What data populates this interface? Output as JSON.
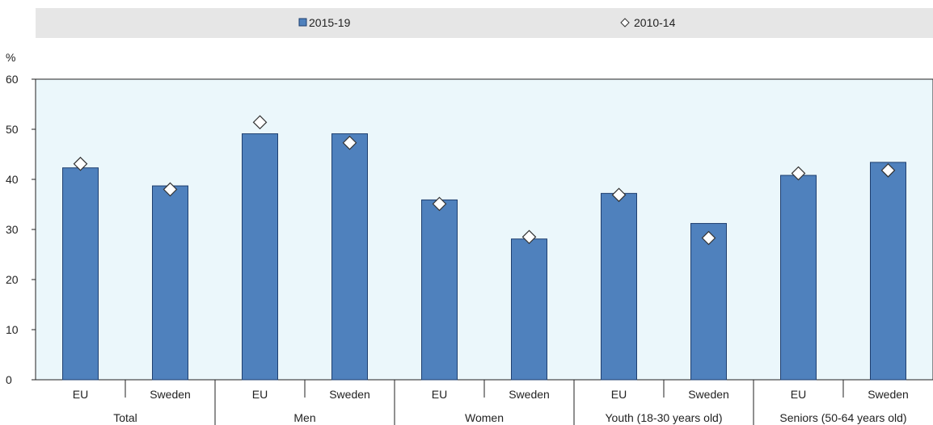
{
  "chart_data": {
    "type": "bar",
    "ylabel": "%",
    "ylim": [
      0,
      60
    ],
    "yticks": [
      0,
      10,
      20,
      30,
      40,
      50,
      60
    ],
    "grid": false,
    "legend_position": "top",
    "groups": [
      "Total",
      "Men",
      "Women",
      "Youth (18-30 years old)",
      "Seniors (50-64 years old)"
    ],
    "categories": [
      "EU",
      "Sweden",
      "EU",
      "Sweden",
      "EU",
      "Sweden",
      "EU",
      "Sweden",
      "EU",
      "Sweden"
    ],
    "series": [
      {
        "name": "2015-19",
        "kind": "bar",
        "color": "#4f81bd",
        "values": [
          42.3,
          38.7,
          49.1,
          49.1,
          35.9,
          28.1,
          37.2,
          31.2,
          40.8,
          43.4
        ]
      },
      {
        "name": "2010-14",
        "kind": "diamond-marker",
        "color": "#ffffff",
        "values": [
          43.1,
          38.0,
          51.4,
          47.3,
          35.1,
          28.5,
          36.9,
          28.3,
          41.2,
          41.8
        ]
      }
    ]
  },
  "colors": {
    "plot_bg": "#ebf7fb",
    "legend_bg": "#e6e6e6",
    "bar": "#4f81bd"
  }
}
